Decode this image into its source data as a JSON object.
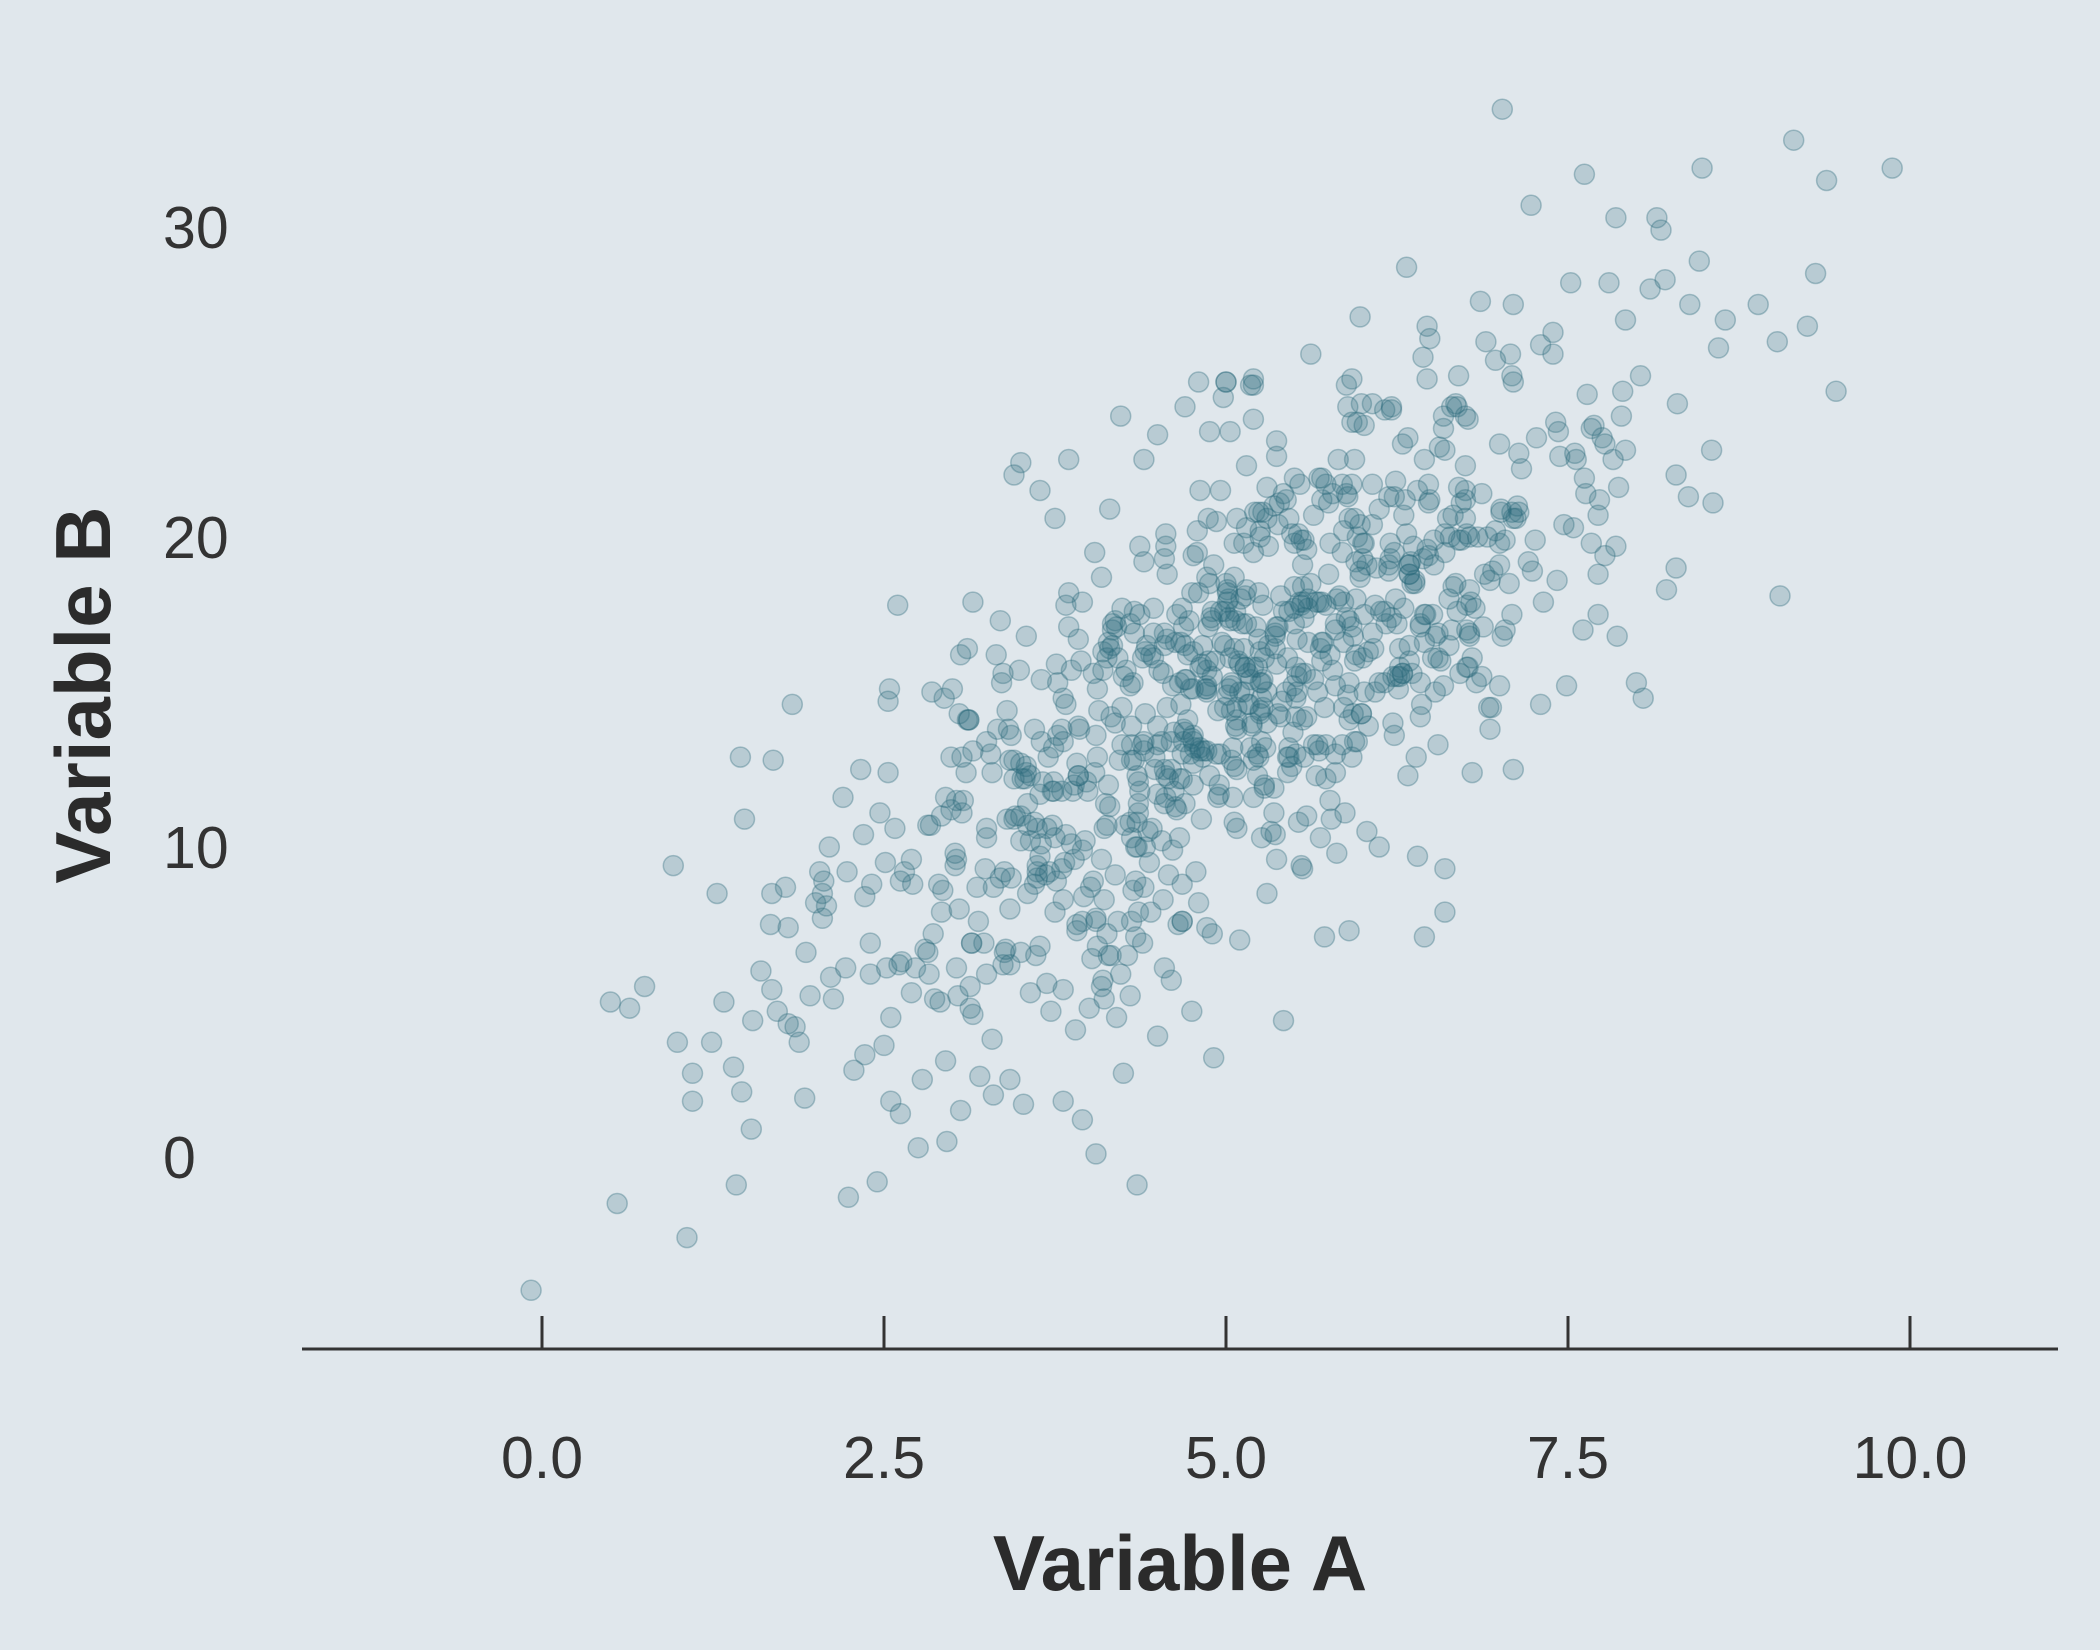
{
  "chart_data": {
    "type": "scatter",
    "title": "",
    "xlabel": "Variable A",
    "ylabel": "Variable B",
    "xlim": [
      -1.75,
      11.08
    ],
    "ylim": [
      -6.3,
      37.5
    ],
    "xticks": [
      0,
      2.5,
      5,
      7.5,
      10
    ],
    "xtick_labels": [
      "0.0",
      "2.5",
      "5.0",
      "7.5",
      "10.0"
    ],
    "yticks": [
      0,
      10,
      20,
      30
    ],
    "ytick_labels": [
      "0",
      "10",
      "20",
      "30"
    ],
    "grid": false,
    "legend": "none",
    "colors": {
      "background": "#e0e7ec",
      "point": "#2a6b7c",
      "axis": "#333333"
    },
    "point_count": 1000,
    "points": [
      [
        -0.08,
        -4.3
      ],
      [
        0.5,
        5.0
      ],
      [
        0.64,
        4.8
      ],
      [
        0.75,
        5.5
      ],
      [
        0.55,
        -1.5
      ],
      [
        0.96,
        9.4
      ],
      [
        1.06,
        -2.6
      ],
      [
        1.1,
        1.8
      ],
      [
        1.24,
        3.7
      ],
      [
        1.33,
        5.0
      ],
      [
        1.4,
        2.9
      ],
      [
        1.42,
        -0.9
      ],
      [
        1.45,
        12.9
      ],
      [
        1.53,
        0.9
      ],
      [
        1.67,
        7.5
      ],
      [
        1.8,
        4.3
      ],
      [
        1.83,
        14.6
      ],
      [
        1.88,
        3.7
      ],
      [
        1.92,
        1.9
      ],
      [
        1.96,
        5.2
      ],
      [
        2.0,
        8.2
      ],
      [
        2.05,
        8.5
      ],
      [
        2.08,
        8.1
      ],
      [
        2.1,
        10.0
      ],
      [
        2.13,
        5.1
      ],
      [
        2.2,
        11.6
      ],
      [
        2.24,
        -1.3
      ],
      [
        2.28,
        2.8
      ],
      [
        2.33,
        12.5
      ],
      [
        2.35,
        10.4
      ],
      [
        2.36,
        3.3
      ],
      [
        2.4,
        6.9
      ],
      [
        2.45,
        -0.8
      ],
      [
        2.47,
        11.1
      ],
      [
        2.5,
        3.6
      ],
      [
        2.53,
        12.4
      ],
      [
        2.55,
        1.8
      ],
      [
        2.6,
        17.8
      ],
      [
        2.62,
        1.4
      ],
      [
        2.65,
        9.2
      ],
      [
        2.7,
        9.6
      ],
      [
        2.75,
        0.3
      ],
      [
        2.78,
        2.5
      ],
      [
        2.82,
        6.6
      ],
      [
        2.85,
        15.0
      ],
      [
        2.9,
        8.8
      ],
      [
        2.95,
        11.6
      ],
      [
        3.0,
        15.1
      ],
      [
        3.05,
        8.0
      ],
      [
        3.1,
        12.4
      ],
      [
        3.15,
        4.6
      ],
      [
        3.2,
        2.6
      ],
      [
        3.25,
        10.6
      ],
      [
        3.3,
        2.0
      ],
      [
        3.35,
        17.3
      ],
      [
        3.38,
        6.6
      ],
      [
        3.42,
        2.5
      ],
      [
        3.45,
        22.0
      ],
      [
        3.5,
        22.4
      ],
      [
        3.55,
        11.4
      ],
      [
        3.6,
        8.8
      ],
      [
        3.65,
        15.4
      ],
      [
        3.7,
        12.9
      ],
      [
        3.75,
        20.6
      ],
      [
        3.8,
        9.3
      ],
      [
        3.85,
        22.5
      ],
      [
        3.9,
        4.1
      ],
      [
        3.95,
        1.2
      ],
      [
        4.0,
        4.8
      ],
      [
        4.05,
        0.1
      ],
      [
        4.1,
        5.7
      ],
      [
        4.15,
        20.9
      ],
      [
        4.2,
        4.5
      ],
      [
        4.25,
        2.7
      ],
      [
        4.3,
        5.2
      ],
      [
        4.35,
        -0.9
      ],
      [
        4.4,
        22.5
      ],
      [
        4.45,
        7.9
      ],
      [
        4.5,
        3.9
      ],
      [
        4.55,
        6.1
      ],
      [
        4.6,
        5.7
      ],
      [
        4.65,
        7.5
      ],
      [
        4.7,
        24.2
      ],
      [
        4.75,
        4.7
      ],
      [
        4.8,
        25.0
      ],
      [
        4.9,
        7.2
      ],
      [
        5.0,
        25.0
      ],
      [
        5.1,
        7.0
      ],
      [
        5.2,
        24.9
      ],
      [
        5.3,
        8.5
      ],
      [
        5.42,
        4.4
      ],
      [
        5.55,
        9.4
      ],
      [
        5.62,
        25.9
      ],
      [
        5.72,
        7.1
      ],
      [
        5.9,
        7.3
      ],
      [
        5.98,
        27.1
      ],
      [
        6.12,
        10.0
      ],
      [
        6.32,
        28.7
      ],
      [
        6.45,
        7.1
      ],
      [
        6.6,
        9.3
      ],
      [
        6.6,
        7.9
      ],
      [
        6.8,
        12.4
      ],
      [
        7.02,
        33.8
      ],
      [
        7.1,
        12.5
      ],
      [
        7.3,
        14.6
      ],
      [
        7.52,
        28.2
      ],
      [
        7.62,
        31.7
      ],
      [
        7.8,
        28.2
      ],
      [
        7.85,
        30.3
      ],
      [
        7.92,
        22.8
      ],
      [
        8.0,
        15.3
      ],
      [
        8.05,
        14.8
      ],
      [
        8.1,
        28.0
      ],
      [
        8.3,
        24.3
      ],
      [
        8.48,
        31.9
      ],
      [
        8.55,
        22.8
      ],
      [
        8.6,
        26.1
      ],
      [
        8.65,
        27.0
      ],
      [
        9.05,
        18.1
      ],
      [
        9.15,
        32.8
      ],
      [
        9.25,
        26.8
      ],
      [
        3.6,
        13.8
      ],
      [
        4.1,
        16.3
      ],
      [
        4.4,
        13.1
      ],
      [
        4.6,
        13.4
      ],
      [
        5.1,
        15.9
      ],
      [
        5.5,
        18.4
      ],
      [
        6.0,
        16.1
      ],
      [
        6.3,
        20.7
      ],
      [
        4.5,
        13.3
      ],
      [
        3.8,
        11.8
      ],
      [
        4.8,
        18.2
      ],
      [
        5.2,
        12.8
      ],
      [
        6.1,
        19.0
      ],
      [
        5.7,
        21.2
      ],
      [
        4.3,
        15.2
      ],
      [
        3.5,
        10.2
      ],
      [
        5.9,
        14.1
      ],
      [
        6.6,
        20.1
      ],
      [
        4.9,
        17.3
      ]
    ]
  }
}
